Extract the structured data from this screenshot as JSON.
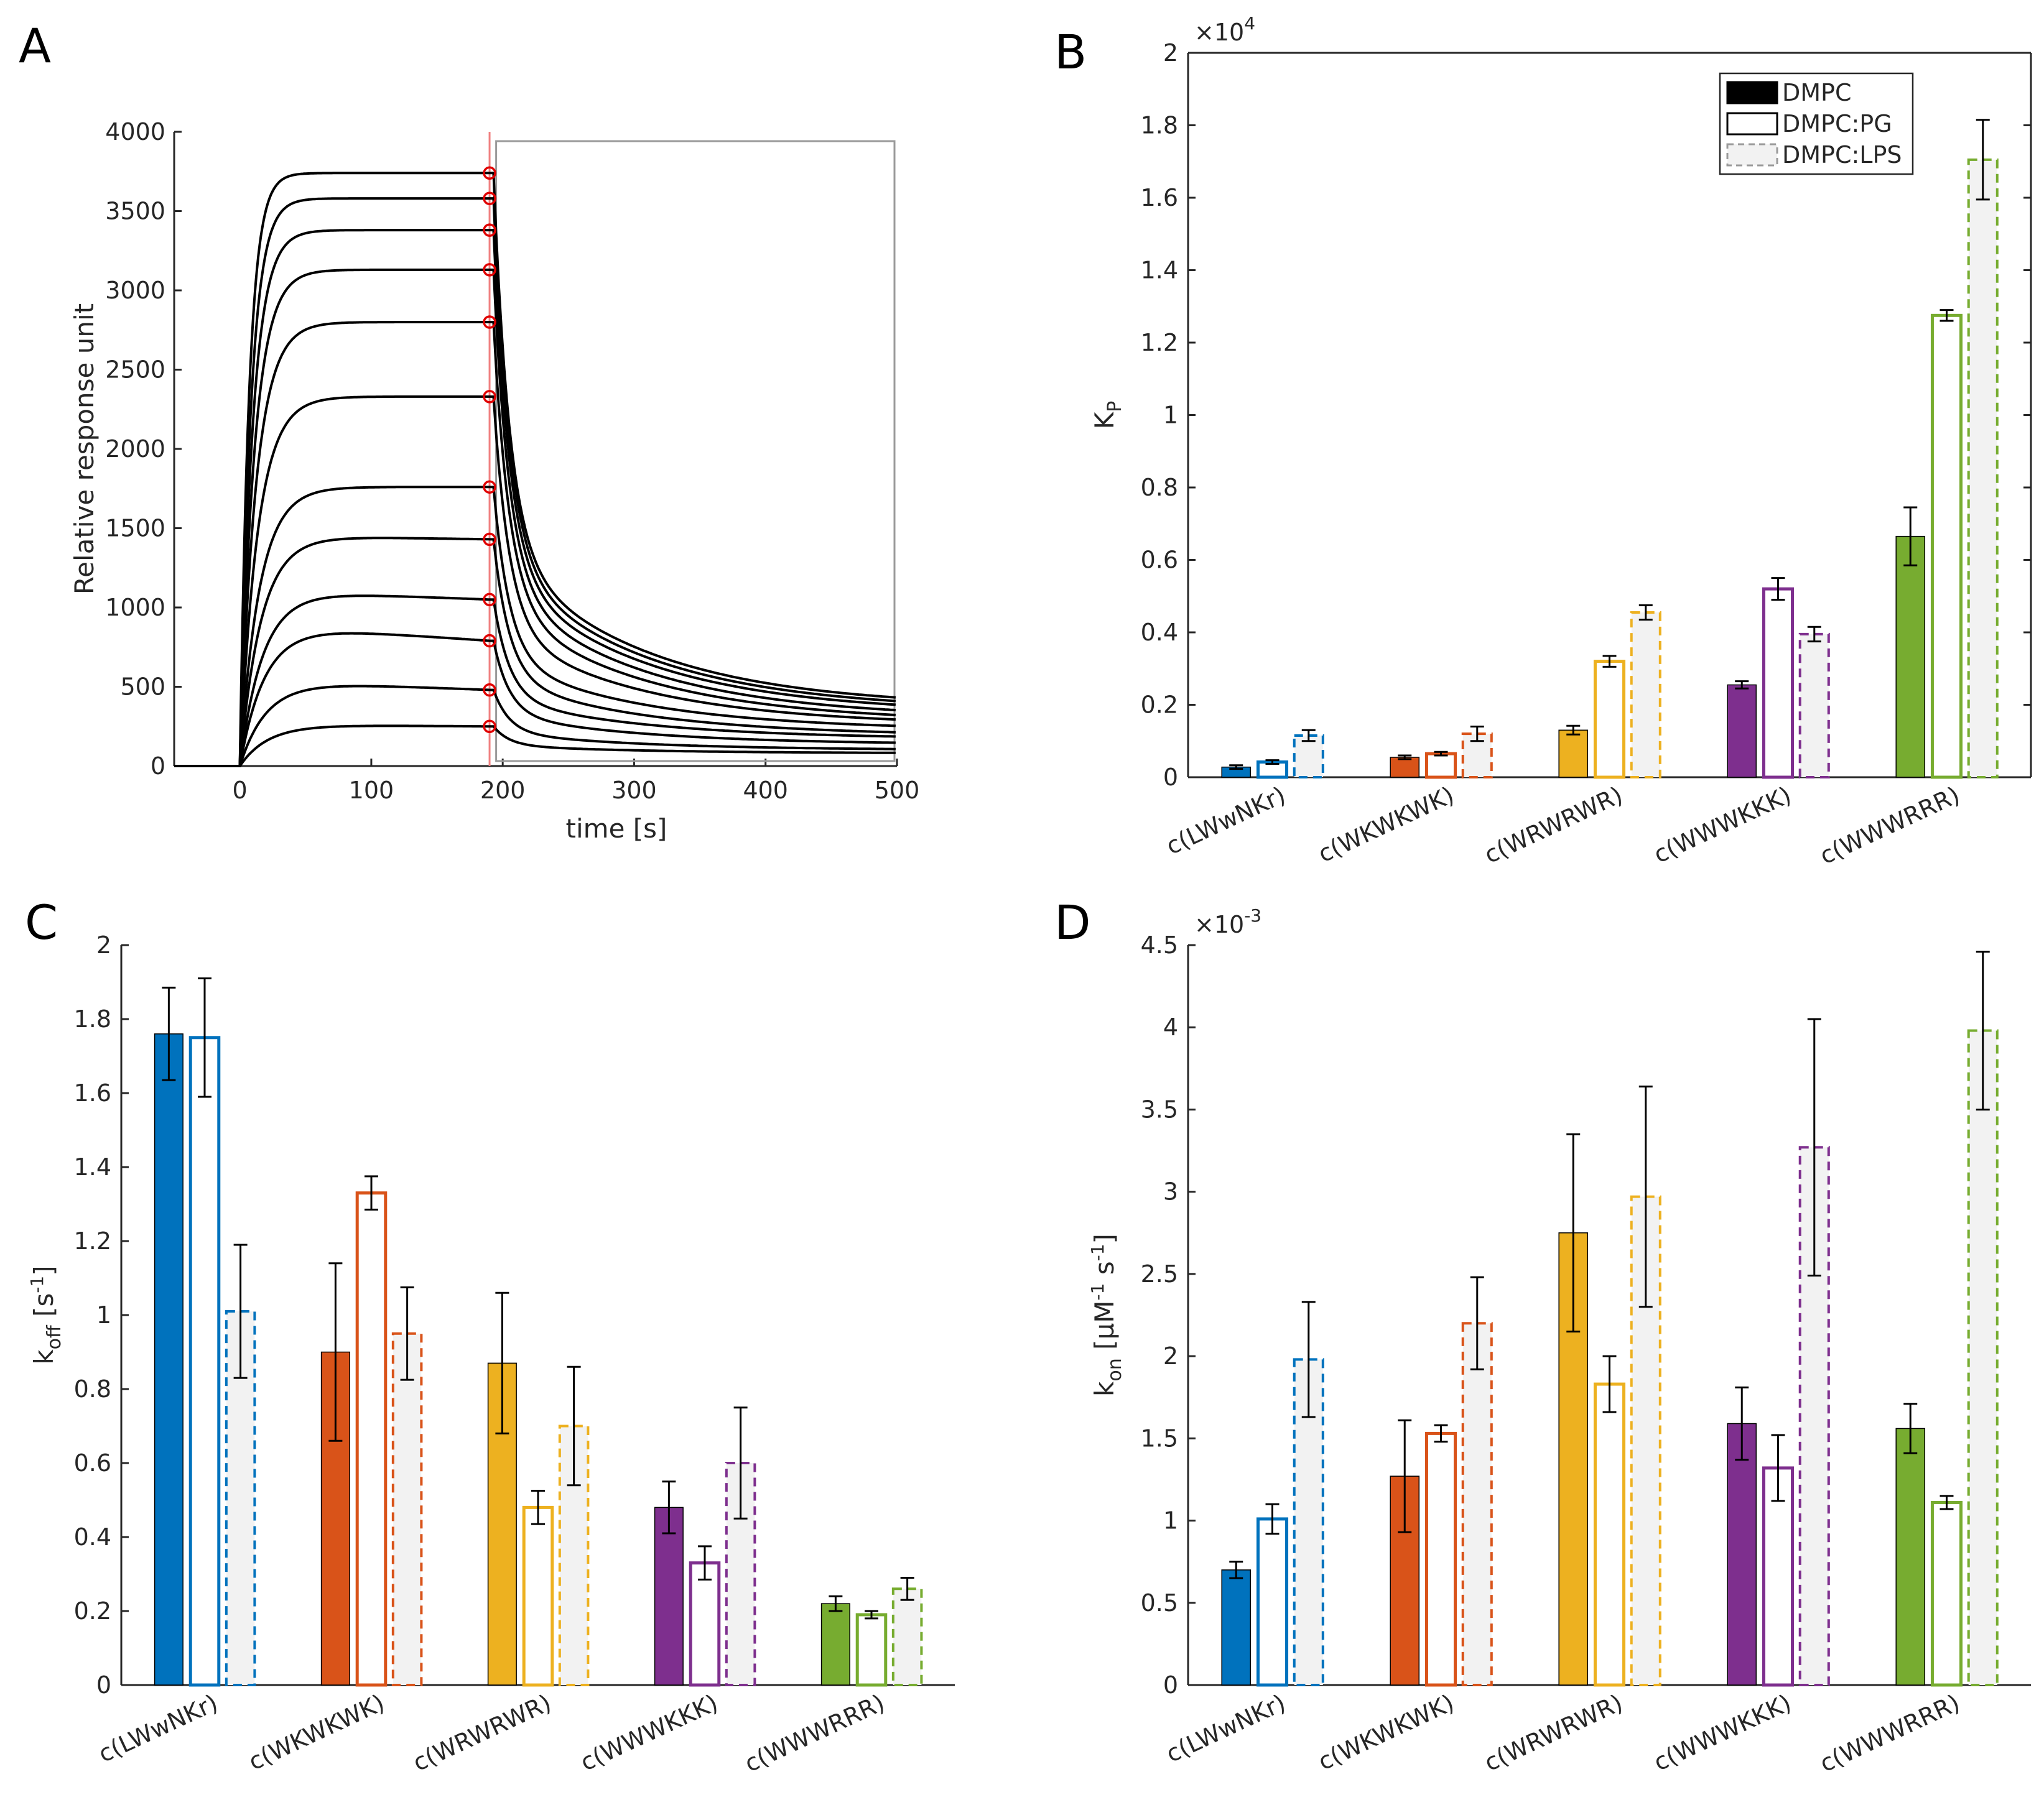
{
  "colors": {
    "LWwNKr": "#0072BD",
    "WKWKWK": "#D95319",
    "WRWRWR": "#EDB120",
    "WWWKKK": "#7E2F8E",
    "WWWRRR": "#77AC30",
    "trace": "#000000",
    "marker": "#E00000",
    "lps_fill": "#F2F2F2"
  },
  "panels": {
    "A": {
      "letter": "A"
    },
    "B": {
      "letter": "B"
    },
    "C": {
      "letter": "C"
    },
    "D": {
      "letter": "D"
    }
  },
  "chart_data": [
    {
      "id": "A",
      "type": "line",
      "xlabel": "time [s]",
      "ylabel": "Relative response unit",
      "xlim": [
        -50,
        500
      ],
      "ylim": [
        0,
        4000
      ],
      "xticks": [
        0,
        100,
        200,
        300,
        400,
        500
      ],
      "yticks": [
        0,
        500,
        1000,
        1500,
        2000,
        2500,
        3000,
        3500,
        4000
      ],
      "injection_end_s": 190,
      "dissociation_box_x": [
        195,
        500
      ],
      "end_of_injection_values": [
        3740,
        3580,
        3380,
        3130,
        2800,
        2330,
        1760,
        1430,
        1050,
        790,
        480,
        250
      ],
      "peak_values": [
        3740,
        3580,
        3380,
        3130,
        2800,
        2330,
        1760,
        1450,
        1100,
        880,
        530,
        260
      ],
      "values_at_500s": [
        370,
        350,
        330,
        300,
        275,
        255,
        225,
        190,
        170,
        135,
        100,
        80
      ],
      "grid": false
    },
    {
      "id": "B",
      "type": "bar",
      "ylabel": "K_P",
      "ylabel_main": "K",
      "ylabel_sub": "P",
      "exponent_label": "×10",
      "exponent": "4",
      "scale": 10000,
      "ylim": [
        0,
        20000
      ],
      "yticks": [
        0,
        2000,
        4000,
        6000,
        8000,
        10000,
        12000,
        14000,
        16000,
        18000,
        20000
      ],
      "ytick_labels": [
        "0",
        "0.2",
        "0.4",
        "0.6",
        "0.8",
        "1",
        "1.2",
        "1.4",
        "1.6",
        "1.8",
        "2"
      ],
      "categories": [
        "c(LWwNKr)",
        "c(WKWKWK)",
        "c(WRWRWR)",
        "c(WWWKKK)",
        "c(WWWRRR)"
      ],
      "series": [
        {
          "name": "DMPC",
          "values": [
            280,
            550,
            1300,
            2550,
            6650
          ],
          "errors": [
            50,
            50,
            120,
            100,
            800
          ]
        },
        {
          "name": "DMPC:PG",
          "values": [
            420,
            650,
            3200,
            5200,
            12750
          ],
          "errors": [
            50,
            50,
            150,
            300,
            150
          ]
        },
        {
          "name": "DMPC:LPS",
          "values": [
            1150,
            1200,
            4550,
            3950,
            17050
          ],
          "errors": [
            150,
            200,
            200,
            200,
            1100
          ]
        }
      ],
      "legend": "top-right",
      "grid": false
    },
    {
      "id": "C",
      "type": "bar",
      "ylabel_main": "k",
      "ylabel_sub": "off",
      "ylabel_unit": " [s",
      "ylabel_sup": "-1",
      "ylabel_close": "]",
      "ylim": [
        0,
        2
      ],
      "yticks": [
        0,
        0.2,
        0.4,
        0.6,
        0.8,
        1,
        1.2,
        1.4,
        1.6,
        1.8,
        2
      ],
      "ytick_labels": [
        "0",
        "0.2",
        "0.4",
        "0.6",
        "0.8",
        "1",
        "1.2",
        "1.4",
        "1.6",
        "1.8",
        "2"
      ],
      "categories": [
        "c(LWwNKr)",
        "c(WKWKWK)",
        "c(WRWRWR)",
        "c(WWWKKK)",
        "c(WWWRRR)"
      ],
      "series": [
        {
          "name": "DMPC",
          "values": [
            1.76,
            0.9,
            0.87,
            0.48,
            0.22
          ],
          "errors": [
            0.125,
            0.24,
            0.19,
            0.07,
            0.02
          ]
        },
        {
          "name": "DMPC:PG",
          "values": [
            1.75,
            1.33,
            0.48,
            0.33,
            0.19
          ],
          "errors": [
            0.16,
            0.045,
            0.045,
            0.045,
            0.01
          ]
        },
        {
          "name": "DMPC:LPS",
          "values": [
            1.01,
            0.95,
            0.7,
            0.6,
            0.26
          ],
          "errors": [
            0.18,
            0.125,
            0.16,
            0.15,
            0.03
          ]
        }
      ],
      "grid": false
    },
    {
      "id": "D",
      "type": "bar",
      "ylabel_main": "k",
      "ylabel_sub": "on",
      "ylabel_unit": " [μM",
      "ylabel_sup": "-1",
      "ylabel_mid": " s",
      "ylabel_sup2": "-1",
      "ylabel_close": "]",
      "exponent_label": "×10",
      "exponent": "-3",
      "scale": 0.001,
      "ylim": [
        0,
        0.0045
      ],
      "yticks": [
        0,
        0.0005,
        0.001,
        0.0015,
        0.002,
        0.0025,
        0.003,
        0.0035,
        0.004,
        0.0045
      ],
      "ytick_labels": [
        "0",
        "0.5",
        "1",
        "1.5",
        "2",
        "2.5",
        "3",
        "3.5",
        "4",
        "4.5"
      ],
      "categories": [
        "c(LWwNKr)",
        "c(WKWKWK)",
        "c(WRWRWR)",
        "c(WWWKKK)",
        "c(WWWRRR)"
      ],
      "series": [
        {
          "name": "DMPC",
          "values": [
            0.0007,
            0.00127,
            0.00275,
            0.00159,
            0.00156
          ],
          "errors": [
            5e-05,
            0.00034,
            0.0006,
            0.00022,
            0.00015
          ]
        },
        {
          "name": "DMPC:PG",
          "values": [
            0.00101,
            0.00153,
            0.00183,
            0.00132,
            0.00111
          ],
          "errors": [
            9e-05,
            5e-05,
            0.00017,
            0.0002,
            4e-05
          ]
        },
        {
          "name": "DMPC:LPS",
          "values": [
            0.00198,
            0.0022,
            0.00297,
            0.00327,
            0.00398
          ],
          "errors": [
            0.00035,
            0.00028,
            0.00067,
            0.00078,
            0.00048
          ]
        }
      ],
      "grid": false
    }
  ]
}
